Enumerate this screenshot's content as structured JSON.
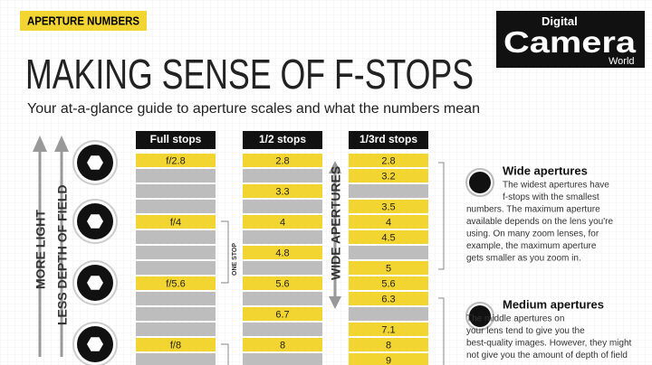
{
  "header": {
    "tag": "APERTURE NUMBERS",
    "title": "MAKING SENSE OF F-STOPS",
    "subtitle": "Your at-a-glance guide to aperture scales and what the numbers mean"
  },
  "logo": {
    "top": "Digital",
    "main": "Camera",
    "bottom": "World"
  },
  "side_labels": {
    "more_light": "MORE LIGHT",
    "less_dof": "LESS DEPTH OF FIELD",
    "wide": "WIDE APERTURES",
    "one_stop": "ONE STOP"
  },
  "table": {
    "columns": [
      {
        "header": "Full stops",
        "cells": [
          "f/2.8",
          null,
          null,
          null,
          "f/4",
          null,
          null,
          null,
          "f/5.6",
          null,
          null,
          null,
          "f/8",
          null
        ]
      },
      {
        "header": "1/2 stops",
        "cells": [
          "2.8",
          null,
          "3.3",
          null,
          "4",
          null,
          "4.8",
          null,
          "5.6",
          null,
          "6.7",
          null,
          "8",
          null
        ]
      },
      {
        "header": "1/3rd stops",
        "cells": [
          "2.8",
          "3.2",
          null,
          "3.5",
          "4",
          "4.5",
          null,
          "5",
          "5.6",
          "6.3",
          null,
          "7.1",
          "8",
          "9"
        ]
      }
    ]
  },
  "notes": [
    {
      "title": "Wide apertures",
      "lines": [
        "The widest apertures have",
        "f-stops with the smallest",
        "numbers. The maximum aperture",
        "available depends on the lens you're",
        "using. On many zoom lenses, for",
        "example, the maximum aperture",
        "gets smaller as you zoom in."
      ]
    },
    {
      "title": "Medium apertures",
      "lines": [
        "The middle apertures on",
        "your lens tend to give you the",
        "best-quality images. However, they might",
        "not give you the amount of depth of field"
      ]
    }
  ]
}
